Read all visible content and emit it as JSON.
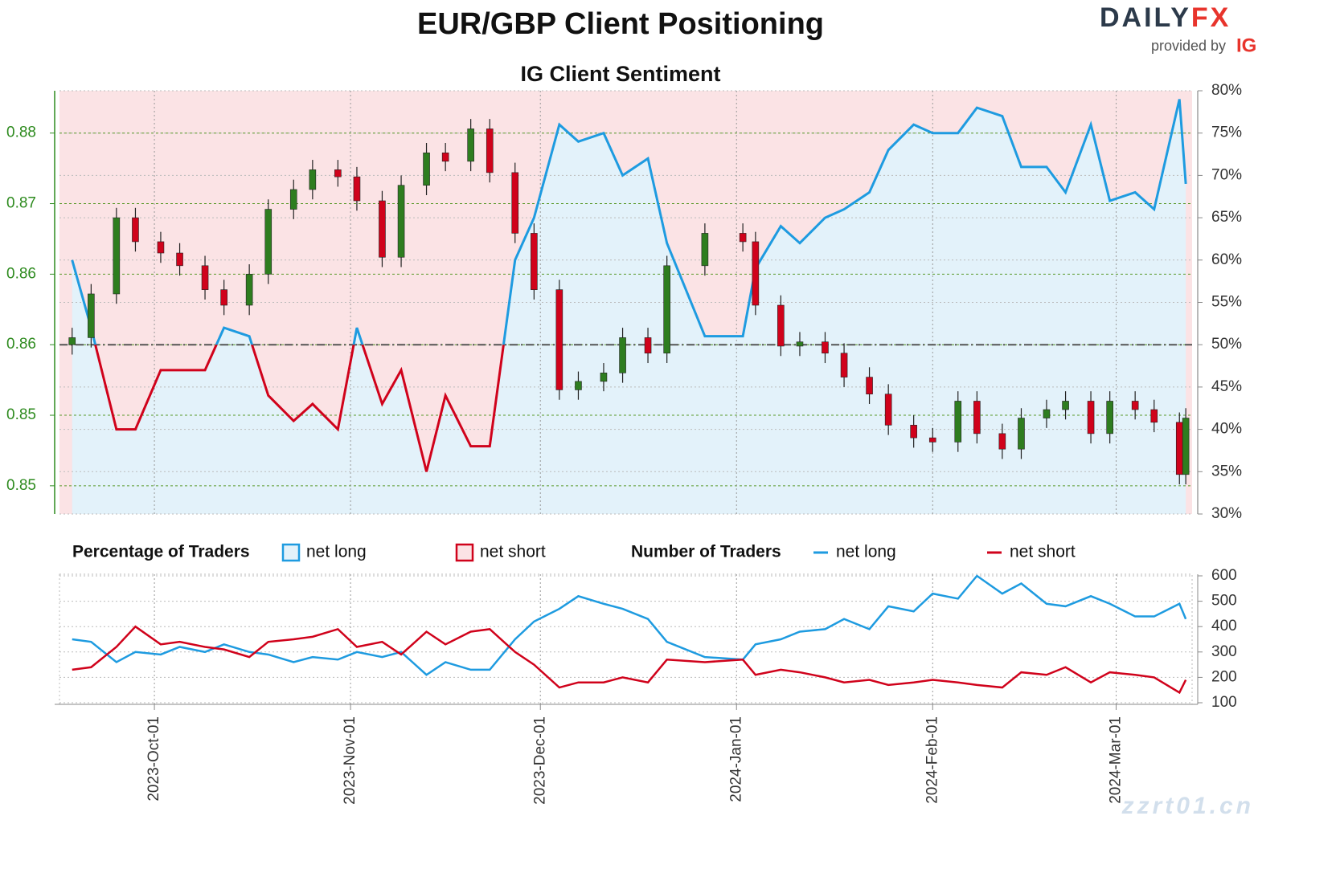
{
  "header": {
    "title": "EUR/GBP Client Positioning",
    "subtitle": "IG Client Sentiment",
    "logo": {
      "brand": "DAILY",
      "brand_accent": "FX",
      "tagline": "provided by",
      "provider": "IG"
    },
    "watermark": "zzrt01.cn"
  },
  "chart_data": [
    {
      "type": "candlestick",
      "x": [
        "2023-09-18",
        "2023-09-21",
        "2023-09-25",
        "2023-09-28",
        "2023-10-02",
        "2023-10-05",
        "2023-10-09",
        "2023-10-12",
        "2023-10-16",
        "2023-10-19",
        "2023-10-23",
        "2023-10-26",
        "2023-10-30",
        "2023-11-02",
        "2023-11-06",
        "2023-11-09",
        "2023-11-13",
        "2023-11-16",
        "2023-11-20",
        "2023-11-23",
        "2023-11-27",
        "2023-11-30",
        "2023-12-04",
        "2023-12-07",
        "2023-12-11",
        "2023-12-14",
        "2023-12-18",
        "2023-12-21",
        "2023-12-27",
        "2024-01-02",
        "2024-01-04",
        "2024-01-08",
        "2024-01-11",
        "2024-01-15",
        "2024-01-18",
        "2024-01-22",
        "2024-01-25",
        "2024-01-29",
        "2024-02-01",
        "2024-02-05",
        "2024-02-08",
        "2024-02-12",
        "2024-02-15",
        "2024-02-19",
        "2024-02-22",
        "2024-02-26",
        "2024-02-29",
        "2024-03-04",
        "2024-03-07",
        "2024-03-11",
        "2024-03-12"
      ],
      "xlim": [
        "2023-09-16",
        "2024-03-13"
      ],
      "ohlc": {
        "open": [
          0.86,
          0.8605,
          0.8636,
          0.869,
          0.8673,
          0.8665,
          0.8656,
          0.8639,
          0.8628,
          0.865,
          0.8696,
          0.871,
          0.8724,
          0.8719,
          0.8702,
          0.8662,
          0.8713,
          0.8736,
          0.873,
          0.8753,
          0.8722,
          0.8679,
          0.8639,
          0.8568,
          0.8574,
          0.858,
          0.8605,
          0.8594,
          0.8656,
          0.8679,
          0.8673,
          0.8628,
          0.8599,
          0.8602,
          0.8594,
          0.8577,
          0.8565,
          0.8543,
          0.8534,
          0.8531,
          0.856,
          0.8537,
          0.8526,
          0.8548,
          0.8554,
          0.856,
          0.8537,
          0.856,
          0.8554,
          0.8545,
          0.8508
        ],
        "high": [
          0.8612,
          0.8643,
          0.8697,
          0.8697,
          0.868,
          0.8672,
          0.8663,
          0.8646,
          0.8657,
          0.8703,
          0.8717,
          0.8731,
          0.8731,
          0.8726,
          0.8709,
          0.872,
          0.8743,
          0.8743,
          0.876,
          0.876,
          0.8729,
          0.8686,
          0.8646,
          0.8581,
          0.8587,
          0.8612,
          0.8612,
          0.8663,
          0.8686,
          0.8686,
          0.868,
          0.8635,
          0.8609,
          0.8609,
          0.8601,
          0.8584,
          0.8572,
          0.855,
          0.8541,
          0.8567,
          0.8567,
          0.8544,
          0.8555,
          0.8561,
          0.8567,
          0.8567,
          0.8567,
          0.8567,
          0.8561,
          0.8552,
          0.8555
        ],
        "low": [
          0.8593,
          0.8598,
          0.8629,
          0.8666,
          0.8658,
          0.8649,
          0.8632,
          0.8621,
          0.8621,
          0.8643,
          0.8689,
          0.8703,
          0.8712,
          0.8695,
          0.8655,
          0.8655,
          0.8706,
          0.8723,
          0.8723,
          0.8715,
          0.8672,
          0.8632,
          0.8561,
          0.8561,
          0.8567,
          0.8573,
          0.8587,
          0.8587,
          0.8649,
          0.8666,
          0.8621,
          0.8592,
          0.8592,
          0.8587,
          0.857,
          0.8558,
          0.8536,
          0.8527,
          0.8524,
          0.8524,
          0.853,
          0.8519,
          0.8519,
          0.8541,
          0.8547,
          0.853,
          0.853,
          0.8547,
          0.8538,
          0.8501,
          0.8501
        ],
        "close": [
          0.8605,
          0.8636,
          0.869,
          0.8673,
          0.8665,
          0.8656,
          0.8639,
          0.8628,
          0.865,
          0.8696,
          0.871,
          0.8724,
          0.8719,
          0.8702,
          0.8662,
          0.8713,
          0.8736,
          0.873,
          0.8753,
          0.8722,
          0.8679,
          0.8639,
          0.8568,
          0.8574,
          0.858,
          0.8605,
          0.8594,
          0.8656,
          0.8679,
          0.8673,
          0.8628,
          0.8599,
          0.8602,
          0.8594,
          0.8577,
          0.8565,
          0.8543,
          0.8534,
          0.8531,
          0.856,
          0.8537,
          0.8526,
          0.8548,
          0.8554,
          0.856,
          0.8537,
          0.856,
          0.8554,
          0.8545,
          0.8508,
          0.8548
        ],
        "up_color": "#2e7d1f",
        "down_color": "#d0021b"
      },
      "ylim": [
        0.848,
        0.878
      ],
      "yticks": [
        {
          "value": 0.875,
          "label": "0.88"
        },
        {
          "value": 0.87,
          "label": "0.87"
        },
        {
          "value": 0.865,
          "label": "0.86"
        },
        {
          "value": 0.86,
          "label": "0.86"
        },
        {
          "value": 0.855,
          "label": "0.85"
        },
        {
          "value": 0.85,
          "label": "0.85"
        }
      ],
      "y2lim": [
        30,
        80
      ],
      "y2ticks": [
        {
          "value": 30,
          "label": "30%"
        },
        {
          "value": 35,
          "label": "35%"
        },
        {
          "value": 40,
          "label": "40%"
        },
        {
          "value": 45,
          "label": "45%"
        },
        {
          "value": 50,
          "label": "50%"
        },
        {
          "value": 55,
          "label": "55%"
        },
        {
          "value": 60,
          "label": "60%"
        },
        {
          "value": 65,
          "label": "65%"
        },
        {
          "value": 70,
          "label": "70%"
        },
        {
          "value": 75,
          "label": "75%"
        },
        {
          "value": 80,
          "label": "80%"
        }
      ],
      "ref_line": 50,
      "legend_title": "Percentage of Traders",
      "series": [
        {
          "name": "net long",
          "color": "#1e9be0",
          "fill": "#e3f2fa",
          "axis": "y2",
          "values": [
            60,
            52,
            40,
            40,
            47,
            47,
            47,
            52,
            51,
            44,
            41,
            43,
            40,
            52,
            43,
            47,
            35,
            44,
            38,
            38,
            60,
            65,
            76,
            74,
            75,
            70,
            72,
            62,
            51,
            51,
            59,
            64,
            62,
            65,
            66,
            68,
            73,
            76,
            75,
            75,
            78,
            77,
            71,
            71,
            68,
            76,
            67,
            68,
            66,
            79,
            69
          ]
        }
      ],
      "short_side": {
        "name": "net short",
        "color": "#d0021b",
        "fill": "#fbe3e5"
      },
      "grid": true
    },
    {
      "type": "line",
      "x": [
        "2023-09-18",
        "2023-09-21",
        "2023-09-25",
        "2023-09-28",
        "2023-10-02",
        "2023-10-05",
        "2023-10-09",
        "2023-10-12",
        "2023-10-16",
        "2023-10-19",
        "2023-10-23",
        "2023-10-26",
        "2023-10-30",
        "2023-11-02",
        "2023-11-06",
        "2023-11-09",
        "2023-11-13",
        "2023-11-16",
        "2023-11-20",
        "2023-11-23",
        "2023-11-27",
        "2023-11-30",
        "2023-12-04",
        "2023-12-07",
        "2023-12-11",
        "2023-12-14",
        "2023-12-18",
        "2023-12-21",
        "2023-12-27",
        "2024-01-02",
        "2024-01-04",
        "2024-01-08",
        "2024-01-11",
        "2024-01-15",
        "2024-01-18",
        "2024-01-22",
        "2024-01-25",
        "2024-01-29",
        "2024-02-01",
        "2024-02-05",
        "2024-02-08",
        "2024-02-12",
        "2024-02-15",
        "2024-02-19",
        "2024-02-22",
        "2024-02-26",
        "2024-02-29",
        "2024-03-04",
        "2024-03-07",
        "2024-03-11",
        "2024-03-12"
      ],
      "xlim": [
        "2023-09-16",
        "2024-03-13"
      ],
      "xticks": [
        {
          "value": "2023-10-01",
          "label": "2023-Oct-01"
        },
        {
          "value": "2023-11-01",
          "label": "2023-Nov-01"
        },
        {
          "value": "2023-12-01",
          "label": "2023-Dec-01"
        },
        {
          "value": "2024-01-01",
          "label": "2024-Jan-01"
        },
        {
          "value": "2024-02-01",
          "label": "2024-Feb-01"
        },
        {
          "value": "2024-03-01",
          "label": "2024-Mar-01"
        }
      ],
      "ylim": [
        100,
        600
      ],
      "yticks": [
        100,
        200,
        300,
        400,
        500,
        600
      ],
      "legend_title": "Number of Traders",
      "series": [
        {
          "name": "net long",
          "color": "#1e9be0",
          "values": [
            350,
            340,
            260,
            300,
            290,
            320,
            300,
            330,
            300,
            290,
            260,
            280,
            270,
            300,
            280,
            300,
            210,
            260,
            230,
            230,
            350,
            420,
            470,
            520,
            490,
            470,
            430,
            340,
            280,
            270,
            330,
            350,
            380,
            390,
            430,
            390,
            480,
            460,
            530,
            510,
            600,
            530,
            570,
            490,
            480,
            520,
            490,
            440,
            440,
            490,
            430
          ]
        },
        {
          "name": "net short",
          "color": "#d0021b",
          "values": [
            230,
            240,
            320,
            400,
            330,
            340,
            320,
            310,
            280,
            340,
            350,
            360,
            390,
            320,
            340,
            290,
            380,
            330,
            380,
            390,
            300,
            250,
            160,
            180,
            180,
            200,
            180,
            270,
            260,
            270,
            210,
            230,
            220,
            200,
            180,
            190,
            170,
            180,
            190,
            180,
            170,
            160,
            220,
            210,
            240,
            180,
            220,
            210,
            200,
            140,
            190
          ]
        }
      ],
      "grid": true
    }
  ]
}
